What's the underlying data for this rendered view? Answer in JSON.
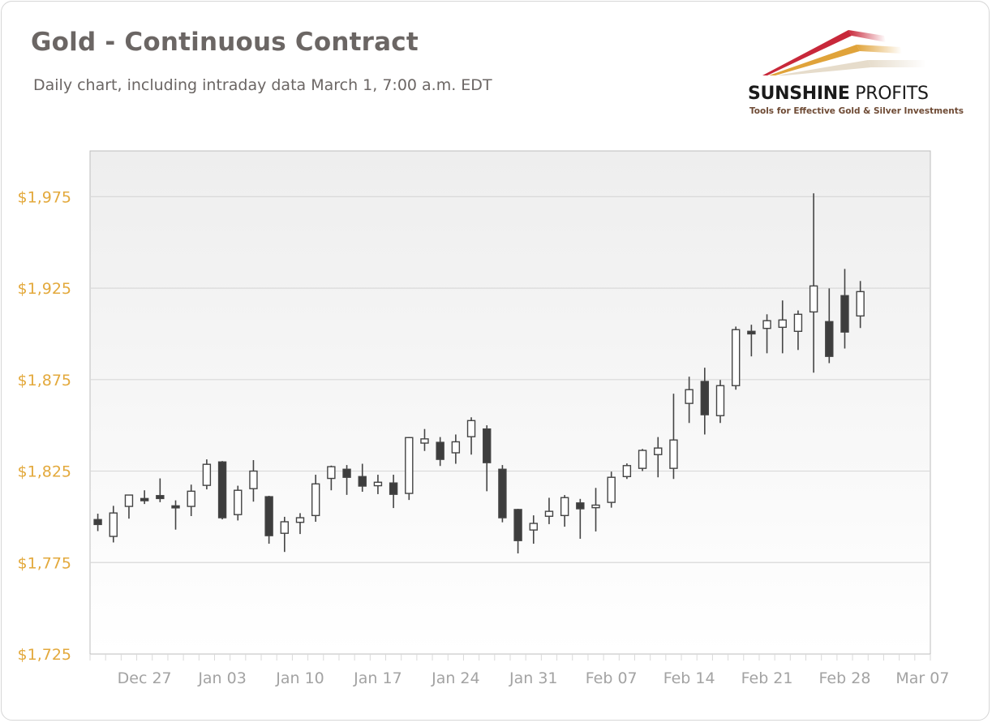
{
  "header": {
    "title": "Gold - Continuous Contract",
    "subtitle": "Daily chart, including intraday data March 1, 7:00 a.m. EDT"
  },
  "logo": {
    "brand_bold": "SUNSHINE",
    "brand_light": " PROFITS",
    "tagline": "Tools for Effective Gold & Silver Investments",
    "colors": [
      "#c8283a",
      "#e0a33a",
      "#e6dccb"
    ]
  },
  "colors": {
    "up_fill": "#ffffff",
    "down_fill": "#3d3d3d",
    "candle_stroke": "#444444",
    "gridline": "#d9d9d9",
    "axis": "#bdbdbd",
    "y_label": "#e3a93c",
    "x_label": "#a3a3a3",
    "plot_bg_top": "#eeeeee",
    "plot_bg_bottom": "#ffffff"
  },
  "chart_data": {
    "type": "candlestick",
    "title": "Gold - Continuous Contract",
    "subtitle": "Daily chart, including intraday data March 1, 7:00 a.m. EDT",
    "xlabel": "",
    "ylabel": "",
    "ylim": [
      1725,
      2000
    ],
    "y_ticks": [
      1725,
      1775,
      1825,
      1875,
      1925,
      1975
    ],
    "y_tick_labels": [
      "$1,725",
      "$1,775",
      "$1,825",
      "$1,875",
      "$1,925",
      "$1,975"
    ],
    "x_tick_labels": [
      {
        "label": "Dec 27",
        "index": 3
      },
      {
        "label": "Jan 03",
        "index": 8
      },
      {
        "label": "Jan 10",
        "index": 13
      },
      {
        "label": "Jan 17",
        "index": 18
      },
      {
        "label": "Jan 24",
        "index": 23
      },
      {
        "label": "Jan 31",
        "index": 28
      },
      {
        "label": "Feb 07",
        "index": 33
      },
      {
        "label": "Feb 14",
        "index": 38
      },
      {
        "label": "Feb 21",
        "index": 43
      },
      {
        "label": "Feb 28",
        "index": 48
      },
      {
        "label": "Mar 07",
        "index": 53
      }
    ],
    "total_slots": 54,
    "grid": true,
    "legend": "none",
    "candles": [
      {
        "date": "Dec 22",
        "open": 1798.5,
        "high": 1801.7,
        "low": 1792.2,
        "close": 1795.8
      },
      {
        "date": "Dec 23",
        "open": 1789.3,
        "high": 1806.0,
        "low": 1786.0,
        "close": 1802.1
      },
      {
        "date": "Dec 24",
        "open": 1805.7,
        "high": 1812.0,
        "low": 1799.0,
        "close": 1811.9
      },
      {
        "date": "Dec 27",
        "open": 1810.0,
        "high": 1814.5,
        "low": 1807.0,
        "close": 1808.8
      },
      {
        "date": "Dec 28",
        "open": 1811.6,
        "high": 1821.0,
        "low": 1808.0,
        "close": 1810.0
      },
      {
        "date": "Dec 29",
        "open": 1806.0,
        "high": 1809.0,
        "low": 1793.0,
        "close": 1805.0
      },
      {
        "date": "Dec 30",
        "open": 1805.7,
        "high": 1817.6,
        "low": 1800.4,
        "close": 1814.0
      },
      {
        "date": "Dec 31",
        "open": 1817.2,
        "high": 1831.4,
        "low": 1815.0,
        "close": 1828.7
      },
      {
        "date": "Jan 03",
        "open": 1830.0,
        "high": 1830.5,
        "low": 1798.6,
        "close": 1799.5
      },
      {
        "date": "Jan 04",
        "open": 1801.2,
        "high": 1817.0,
        "low": 1798.0,
        "close": 1814.5
      },
      {
        "date": "Jan 05",
        "open": 1815.4,
        "high": 1831.0,
        "low": 1808.3,
        "close": 1825.0
      },
      {
        "date": "Jan 06",
        "open": 1811.0,
        "high": 1811.5,
        "low": 1785.3,
        "close": 1789.7
      },
      {
        "date": "Jan 07",
        "open": 1791.0,
        "high": 1800.0,
        "low": 1780.8,
        "close": 1797.3
      },
      {
        "date": "Jan 10",
        "open": 1797.0,
        "high": 1802.0,
        "low": 1790.6,
        "close": 1799.5
      },
      {
        "date": "Jan 11",
        "open": 1800.7,
        "high": 1823.0,
        "low": 1797.3,
        "close": 1818.0
      },
      {
        "date": "Jan 12",
        "open": 1821.0,
        "high": 1828.0,
        "low": 1814.5,
        "close": 1827.4
      },
      {
        "date": "Jan 13",
        "open": 1826.0,
        "high": 1828.3,
        "low": 1812.0,
        "close": 1821.6
      },
      {
        "date": "Jan 14",
        "open": 1822.0,
        "high": 1829.0,
        "low": 1813.7,
        "close": 1816.8
      },
      {
        "date": "Jan 17",
        "open": 1817.0,
        "high": 1823.0,
        "low": 1812.4,
        "close": 1818.9
      },
      {
        "date": "Jan 18",
        "open": 1818.5,
        "high": 1823.0,
        "low": 1804.8,
        "close": 1812.3
      },
      {
        "date": "Jan 19",
        "open": 1812.8,
        "high": 1843.6,
        "low": 1809.2,
        "close": 1843.3
      },
      {
        "date": "Jan 20",
        "open": 1840.3,
        "high": 1848.0,
        "low": 1836.0,
        "close": 1842.6
      },
      {
        "date": "Jan 21",
        "open": 1840.7,
        "high": 1843.6,
        "low": 1827.8,
        "close": 1831.4
      },
      {
        "date": "Jan 24",
        "open": 1835.0,
        "high": 1845.0,
        "low": 1829.0,
        "close": 1841.0
      },
      {
        "date": "Jan 25",
        "open": 1843.8,
        "high": 1854.4,
        "low": 1834.0,
        "close": 1852.6
      },
      {
        "date": "Jan 26",
        "open": 1848.0,
        "high": 1850.0,
        "low": 1814.0,
        "close": 1829.6
      },
      {
        "date": "Jan 27",
        "open": 1826.0,
        "high": 1828.3,
        "low": 1797.0,
        "close": 1799.5
      },
      {
        "date": "Jan 28",
        "open": 1804.0,
        "high": 1804.4,
        "low": 1780.0,
        "close": 1787.0
      },
      {
        "date": "Jan 31",
        "open": 1792.8,
        "high": 1800.8,
        "low": 1785.3,
        "close": 1796.4
      },
      {
        "date": "Feb 01",
        "open": 1800.3,
        "high": 1810.4,
        "low": 1796.0,
        "close": 1803.0
      },
      {
        "date": "Feb 02",
        "open": 1800.7,
        "high": 1811.9,
        "low": 1794.6,
        "close": 1810.5
      },
      {
        "date": "Feb 03",
        "open": 1807.6,
        "high": 1809.8,
        "low": 1788.0,
        "close": 1804.4
      },
      {
        "date": "Feb 04",
        "open": 1805.0,
        "high": 1815.8,
        "low": 1792.0,
        "close": 1806.4
      },
      {
        "date": "Feb 07",
        "open": 1807.9,
        "high": 1824.7,
        "low": 1805.0,
        "close": 1821.6
      },
      {
        "date": "Feb 08",
        "open": 1822.0,
        "high": 1829.2,
        "low": 1820.7,
        "close": 1828.0
      },
      {
        "date": "Feb 09",
        "open": 1826.5,
        "high": 1837.1,
        "low": 1825.0,
        "close": 1836.3
      },
      {
        "date": "Feb 10",
        "open": 1834.0,
        "high": 1843.6,
        "low": 1821.6,
        "close": 1837.6
      },
      {
        "date": "Feb 11",
        "open": 1826.5,
        "high": 1867.3,
        "low": 1820.7,
        "close": 1842.0
      },
      {
        "date": "Feb 14",
        "open": 1862.0,
        "high": 1876.6,
        "low": 1851.3,
        "close": 1869.5
      },
      {
        "date": "Feb 15",
        "open": 1874.0,
        "high": 1881.5,
        "low": 1845.0,
        "close": 1855.8
      },
      {
        "date": "Feb 16",
        "open": 1855.3,
        "high": 1874.8,
        "low": 1851.3,
        "close": 1871.7
      },
      {
        "date": "Feb 17",
        "open": 1871.7,
        "high": 1904.0,
        "low": 1869.5,
        "close": 1902.3
      },
      {
        "date": "Feb 18",
        "open": 1901.4,
        "high": 1905.0,
        "low": 1887.7,
        "close": 1900.0
      },
      {
        "date": "Feb 21",
        "open": 1903.0,
        "high": 1910.7,
        "low": 1889.4,
        "close": 1907.2
      },
      {
        "date": "Feb 22",
        "open": 1903.6,
        "high": 1918.3,
        "low": 1889.4,
        "close": 1907.6
      },
      {
        "date": "Feb 23",
        "open": 1901.4,
        "high": 1912.8,
        "low": 1891.2,
        "close": 1910.7
      },
      {
        "date": "Feb 24",
        "open": 1912.0,
        "high": 1976.8,
        "low": 1878.8,
        "close": 1926.2
      },
      {
        "date": "Feb 25",
        "open": 1906.7,
        "high": 1924.9,
        "low": 1884.0,
        "close": 1887.7
      },
      {
        "date": "Feb 28",
        "open": 1920.9,
        "high": 1935.5,
        "low": 1892.0,
        "close": 1901.0
      },
      {
        "date": "Mar 01",
        "open": 1909.8,
        "high": 1928.9,
        "low": 1903.2,
        "close": 1923.1
      }
    ]
  }
}
